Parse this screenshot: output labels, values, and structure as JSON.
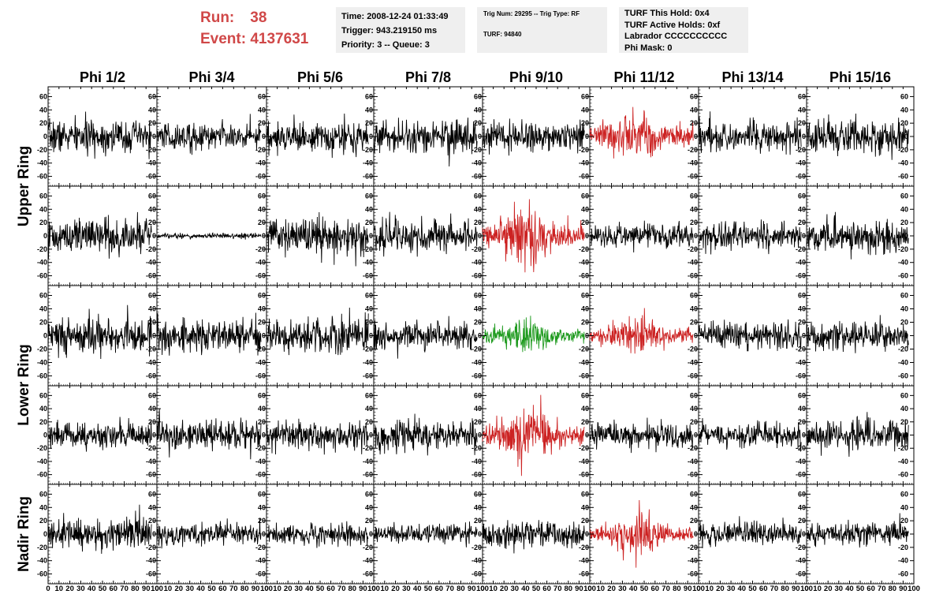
{
  "header": {
    "run_label": "Run:",
    "run_value": "38",
    "event_label": "Event:",
    "event_value": "4137631",
    "box1": [
      "Time: 2008-12-24 01:33:49",
      "Trigger: 943.219150 ms",
      "Priority: 3 -- Queue: 3"
    ],
    "box2": [
      "Trig Num: 29295 -- Trig Type: RF",
      "TURF: 94840"
    ],
    "box3": [
      "TURF This Hold: 0x4",
      "TURF Active Holds: 0xf",
      "Labrador CCCCCCCCCC",
      "Phi Mask: 0"
    ]
  },
  "columns": [
    "Phi 1/2",
    "Phi 3/4",
    "Phi 5/6",
    "Phi 7/8",
    "Phi 9/10",
    "Phi 11/12",
    "Phi 13/14",
    "Phi 15/16"
  ],
  "rings": [
    {
      "label": "Upper Ring",
      "rows": [
        0,
        1
      ]
    },
    {
      "label": "Lower Ring",
      "rows": [
        2,
        3
      ]
    },
    {
      "label": "Nadir Ring",
      "rows": [
        4
      ]
    }
  ],
  "colors": {
    "black": "#000000",
    "red": "#cc2222",
    "green": "#1e9a1e",
    "title_red": "#d04848",
    "box_gray": "#efefef"
  },
  "chart_data": {
    "type": "line",
    "title": "",
    "xlabel": "",
    "ylabel": "",
    "xlim": [
      0,
      100
    ],
    "ylim": [
      -70,
      70
    ],
    "x_ticks": [
      0,
      10,
      20,
      30,
      40,
      50,
      60,
      70,
      80,
      90,
      100
    ],
    "x_tick_labels": [
      "0",
      "10",
      "20",
      "30",
      "40",
      "50",
      "60",
      "70",
      "80",
      "90",
      "100"
    ],
    "y_ticks": [
      -60,
      -40,
      -20,
      0,
      20,
      40,
      60
    ],
    "y_tick_labels": [
      "-60",
      "-40",
      "-20",
      "0",
      "20",
      "40",
      "60"
    ],
    "grid": false,
    "waveform_amplitude_rms": [
      [
        12,
        10,
        11,
        12,
        11,
        16,
        11,
        12
      ],
      [
        13,
        2,
        14,
        12,
        18,
        9,
        10,
        12
      ],
      [
        14,
        12,
        13,
        10,
        11,
        12,
        10,
        10
      ],
      [
        10,
        11,
        10,
        11,
        17,
        9,
        9,
        11
      ],
      [
        12,
        8,
        8,
        7,
        9,
        12,
        9,
        8
      ]
    ],
    "waveform_color": [
      [
        "black",
        "black",
        "black",
        "black",
        "black",
        "red",
        "black",
        "black"
      ],
      [
        "black",
        "black",
        "black",
        "black",
        "red",
        "black",
        "black",
        "black"
      ],
      [
        "black",
        "black",
        "black",
        "black",
        "green",
        "red",
        "black",
        "black"
      ],
      [
        "black",
        "black",
        "black",
        "black",
        "red",
        "black",
        "black",
        "black"
      ],
      [
        "black",
        "black",
        "black",
        "black",
        "black",
        "red",
        "black",
        "black"
      ]
    ]
  }
}
